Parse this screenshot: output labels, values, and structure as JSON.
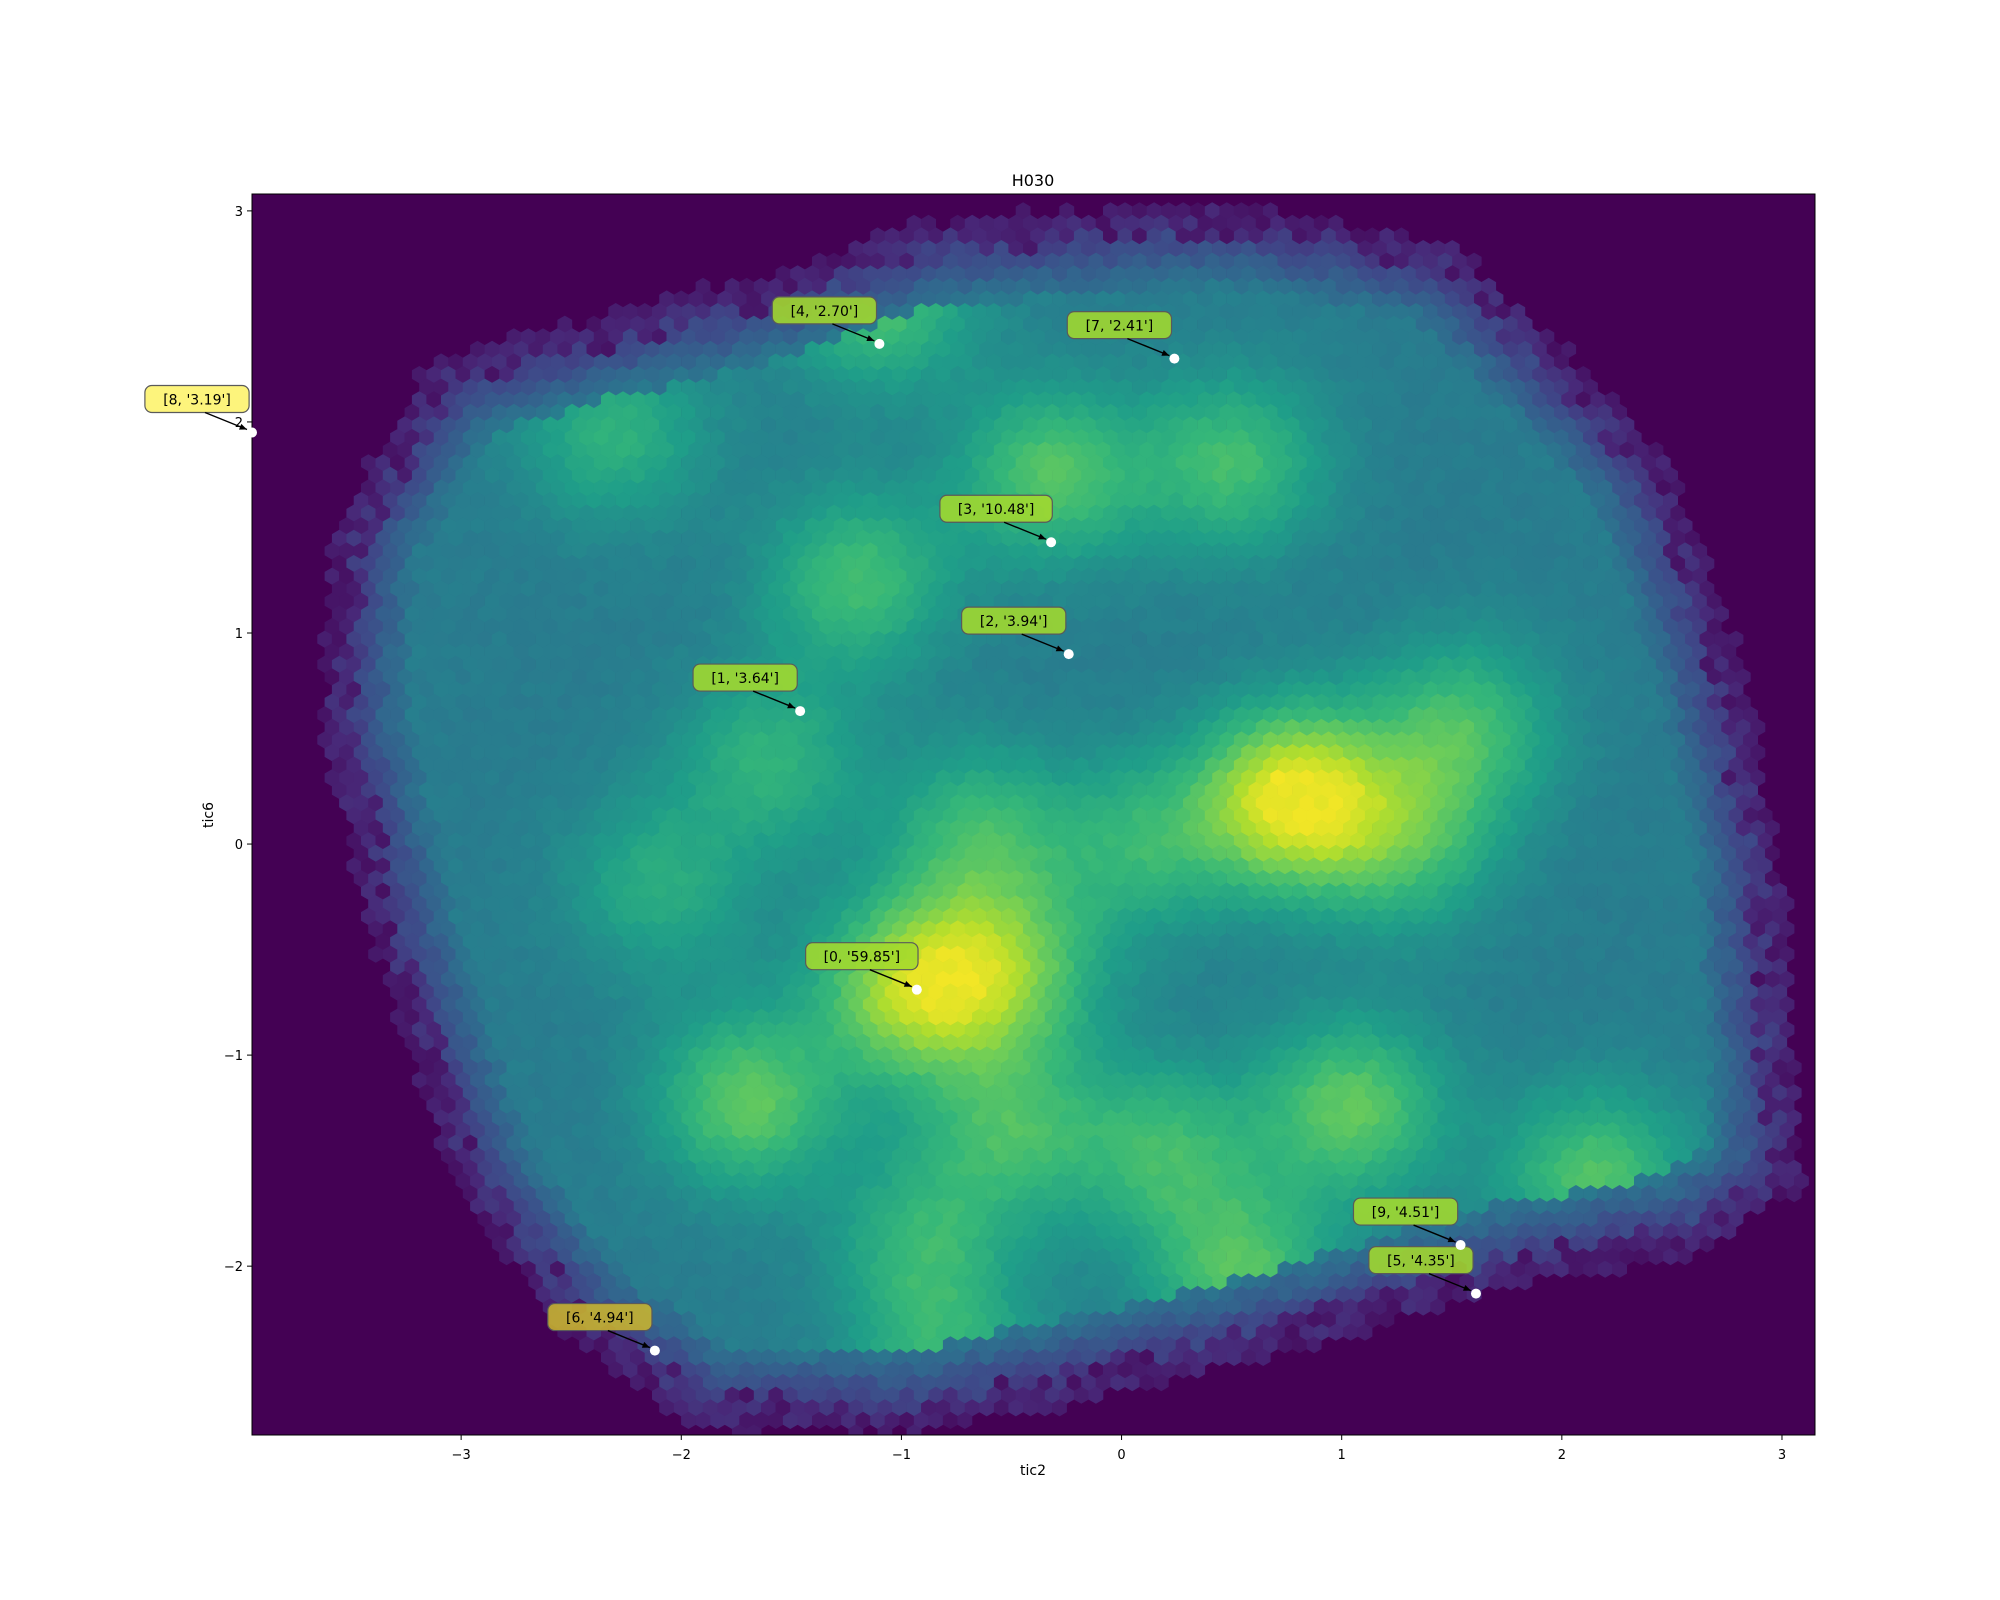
{
  "chart_data": {
    "type": "heatmap",
    "title": "H030",
    "xlabel": "tic2",
    "ylabel": "tic6",
    "xlim": [
      -3.95,
      3.15
    ],
    "ylim": [
      -2.8,
      3.08
    ],
    "xticks": [
      -3,
      -2,
      -1,
      0,
      1,
      2,
      3
    ],
    "yticks": [
      -2,
      -1,
      0,
      1,
      2,
      3
    ],
    "xtick_labels": [
      "−3",
      "−2",
      "−1",
      "0",
      "1",
      "2",
      "3"
    ],
    "ytick_labels": [
      "−2",
      "−1",
      "0",
      "1",
      "2",
      "3"
    ],
    "colormap": "viridis",
    "grid": false,
    "density_centers": [
      {
        "x": 0.78,
        "y": 0.22,
        "weight": 1.0
      },
      {
        "x": -0.95,
        "y": -0.68,
        "weight": 0.8
      },
      {
        "x": -1.7,
        "y": -1.22,
        "weight": 0.6
      },
      {
        "x": 1.05,
        "y": -1.25,
        "weight": 0.6
      },
      {
        "x": 2.15,
        "y": -1.58,
        "weight": 0.55
      },
      {
        "x": 0.55,
        "y": -2.05,
        "weight": 0.55
      },
      {
        "x": -1.1,
        "y": 2.6,
        "weight": 0.55
      },
      {
        "x": -0.32,
        "y": 1.75,
        "weight": 0.55
      },
      {
        "x": 0.5,
        "y": 1.8,
        "weight": 0.5
      },
      {
        "x": -1.2,
        "y": 1.25,
        "weight": 0.5
      },
      {
        "x": -0.5,
        "y": -0.6,
        "weight": 0.55
      },
      {
        "x": -0.5,
        "y": -1.35,
        "weight": 0.45
      },
      {
        "x": 0.2,
        "y": -1.45,
        "weight": 0.45
      },
      {
        "x": 1.55,
        "y": 0.55,
        "weight": 0.5
      },
      {
        "x": 1.3,
        "y": 0.0,
        "weight": 0.45
      },
      {
        "x": -0.65,
        "y": 0.05,
        "weight": 0.45
      },
      {
        "x": -0.9,
        "y": -1.9,
        "weight": 0.4
      },
      {
        "x": -2.3,
        "y": 1.95,
        "weight": 0.4
      },
      {
        "x": -1.6,
        "y": 0.4,
        "weight": 0.4
      },
      {
        "x": 0.1,
        "y": 0.0,
        "weight": 0.4
      },
      {
        "x": -0.8,
        "y": -2.5,
        "weight": 0.4
      },
      {
        "x": -2.1,
        "y": -0.2,
        "weight": 0.35
      }
    ],
    "annotations": [
      {
        "label": "[0, '59.85']",
        "x": -0.93,
        "y": -0.69
      },
      {
        "label": "[1, '3.64']",
        "x": -1.46,
        "y": 0.63
      },
      {
        "label": "[2, '3.94']",
        "x": -0.24,
        "y": 0.9
      },
      {
        "label": "[3, '10.48']",
        "x": -0.32,
        "y": 1.43
      },
      {
        "label": "[4, '2.70']",
        "x": -1.1,
        "y": 2.37
      },
      {
        "label": "[5, '4.35']",
        "x": 1.61,
        "y": -2.13
      },
      {
        "label": "[6, '4.94']",
        "x": -2.12,
        "y": -2.4
      },
      {
        "label": "[7, '2.41']",
        "x": 0.24,
        "y": 2.3
      },
      {
        "label": "[8, '3.19']",
        "x": -3.95,
        "y": 1.95
      },
      {
        "label": "[9, '4.51']",
        "x": 1.54,
        "y": -1.9
      }
    ],
    "annotation_colors": [
      "#a3d92e",
      "#a3d92e",
      "#a3d92e",
      "#a3d92e",
      "#a3d92e",
      "#a3d92e",
      "#c9b52f",
      "#a3d92e",
      "#fdf36a",
      "#a3d92e"
    ]
  }
}
